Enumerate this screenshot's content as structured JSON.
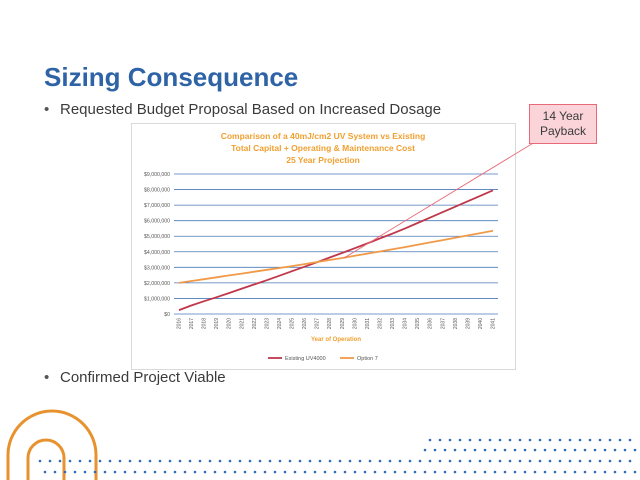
{
  "slide": {
    "title": "Sizing Consequence",
    "bullets": [
      "Requested Budget Proposal Based on Increased Dosage",
      "Confirmed Project Viable"
    ]
  },
  "callout": {
    "line1": "14 Year",
    "line2": "Payback"
  },
  "colors": {
    "title": "#2e63a6",
    "chart_title": "#f0a030",
    "series_existing": "#c0374a",
    "series_option": "#f09a48",
    "gridlines": "#4a7ab8",
    "callout_fill": "#fad4d8",
    "callout_border": "#e86a78",
    "decor_orange": "#e8922e",
    "decor_blue": "#2e6cb8"
  },
  "chart_data": {
    "type": "line",
    "title_lines": [
      "Comparison of a 40mJ/cm2 UV System vs Existing",
      "Total Capital + Operating & Maintenance Cost",
      "25 Year Projection"
    ],
    "xlabel": "Year of Operation",
    "ylabel": "",
    "ylim": [
      0,
      9000000
    ],
    "yticks": [
      "$0",
      "$1,000,000",
      "$2,000,000",
      "$3,000,000",
      "$4,000,000",
      "$5,000,000",
      "$6,000,000",
      "$7,000,000",
      "$8,000,000",
      "$9,000,000"
    ],
    "x": [
      "2016",
      "2017",
      "2018",
      "2019",
      "2020",
      "2021",
      "2022",
      "2023",
      "2024",
      "2025",
      "2026",
      "2027",
      "2028",
      "2029",
      "2030",
      "2031",
      "2032",
      "2033",
      "2034",
      "2035",
      "2036",
      "2037",
      "2038",
      "2039",
      "2040",
      "2041"
    ],
    "series": [
      {
        "name": "Existing UV4000",
        "values": [
          250000,
          550000,
          820000,
          1080000,
          1350000,
          1630000,
          1900000,
          2170000,
          2460000,
          2750000,
          3040000,
          3330000,
          3630000,
          3930000,
          4230000,
          4540000,
          4860000,
          5170000,
          5500000,
          5850000,
          6200000,
          6550000,
          6900000,
          7250000,
          7600000,
          7950000
        ]
      },
      {
        "name": "Option 7",
        "values": [
          2000000,
          2120000,
          2240000,
          2360000,
          2480000,
          2600000,
          2720000,
          2840000,
          2960000,
          3080000,
          3210000,
          3340000,
          3470000,
          3600000,
          3740000,
          3880000,
          4020000,
          4160000,
          4300000,
          4450000,
          4600000,
          4750000,
          4900000,
          5050000,
          5200000,
          5350000
        ]
      }
    ],
    "grid": true,
    "legend": "bottom",
    "annotation": "14 Year Payback"
  }
}
